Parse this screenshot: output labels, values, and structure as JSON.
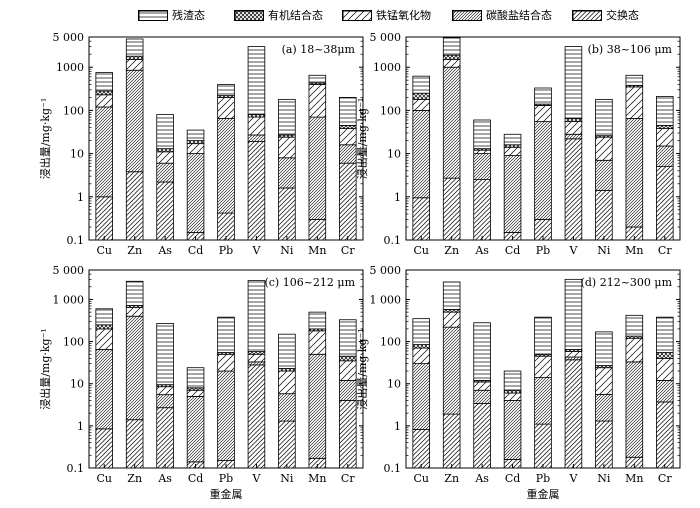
{
  "legend": [
    {
      "label": "残渣态",
      "pattern": "hlines"
    },
    {
      "label": "有机结合态",
      "pattern": "cross"
    },
    {
      "label": "铁锰氧化物",
      "pattern": "diag_sparse"
    },
    {
      "label": "碳酸盐结合态",
      "pattern": "diag_dense"
    },
    {
      "label": "交换态",
      "pattern": "diag_medium"
    }
  ],
  "chart_data": [
    {
      "type": "bar",
      "stacked": true,
      "yscale": "log",
      "title": "(a) 18~38μm",
      "categories": [
        "Cu",
        "Zn",
        "As",
        "Cd",
        "Pb",
        "V",
        "Ni",
        "Mn",
        "Cr"
      ],
      "ylabel": "浸出量/mg·kg⁻¹",
      "xlabel": "",
      "ylim": [
        0.1,
        5000
      ],
      "yticks": [
        "0.1",
        "1",
        "10",
        "100",
        "1000",
        "5 000"
      ],
      "cumulative": [
        {
          "name": "交换态",
          "values": [
            1.0,
            3.8,
            2.2,
            0.15,
            0.42,
            19,
            1.6,
            0.3,
            6
          ]
        },
        {
          "name": "碳酸盐结合态",
          "values": [
            120,
            850,
            6,
            10,
            65,
            27,
            8,
            70,
            16
          ]
        },
        {
          "name": "铁锰氧化物",
          "values": [
            230,
            1500,
            11,
            17,
            200,
            70,
            24,
            400,
            38
          ]
        },
        {
          "name": "有机结合态",
          "values": [
            280,
            1800,
            13,
            20,
            220,
            80,
            27,
            430,
            45
          ]
        },
        {
          "name": "残渣态",
          "values": [
            750,
            4500,
            80,
            35,
            400,
            3000,
            180,
            650,
            200
          ]
        }
      ]
    },
    {
      "type": "bar",
      "stacked": true,
      "yscale": "log",
      "title": "(b) 38~106 μm",
      "categories": [
        "Cu",
        "Zn",
        "As",
        "Cd",
        "Pb",
        "V",
        "Ni",
        "Mn",
        "Cr"
      ],
      "ylabel": "浸出量/mg·kg⁻¹",
      "xlabel": "",
      "ylim": [
        0.1,
        5000
      ],
      "yticks": [
        "0.1",
        "1",
        "10",
        "100",
        "1000",
        "5 000"
      ],
      "cumulative": [
        {
          "name": "交换态",
          "values": [
            0.95,
            2.7,
            2.5,
            0.15,
            0.3,
            22,
            1.4,
            0.2,
            5
          ]
        },
        {
          "name": "碳酸盐结合态",
          "values": [
            100,
            1000,
            10,
            9,
            55,
            28,
            7,
            65,
            15
          ]
        },
        {
          "name": "铁锰氧化物",
          "values": [
            180,
            1500,
            12,
            14,
            130,
            55,
            24,
            350,
            38
          ]
        },
        {
          "name": "有机结合态",
          "values": [
            250,
            1900,
            13,
            16,
            140,
            65,
            26,
            380,
            45
          ]
        },
        {
          "name": "残渣态",
          "values": [
            620,
            4800,
            60,
            28,
            330,
            3000,
            180,
            650,
            210
          ]
        }
      ]
    },
    {
      "type": "bar",
      "stacked": true,
      "yscale": "log",
      "title": "(c) 106~212 μm",
      "categories": [
        "Cu",
        "Zn",
        "As",
        "Cd",
        "Pb",
        "V",
        "Ni",
        "Mn",
        "Cr"
      ],
      "ylabel": "浸出量/mg·kg⁻¹",
      "xlabel": "重金属",
      "ylim": [
        0.1,
        5000
      ],
      "yticks": [
        "0.1",
        "1",
        "10",
        "100",
        "1 000",
        "5 000"
      ],
      "cumulative": [
        {
          "name": "交换态",
          "values": [
            0.85,
            1.4,
            2.7,
            0.14,
            0.15,
            28,
            1.3,
            0.17,
            4
          ]
        },
        {
          "name": "碳酸盐结合态",
          "values": [
            65,
            400,
            5.5,
            5,
            20,
            33,
            5.8,
            50,
            12
          ]
        },
        {
          "name": "铁锰氧化物",
          "values": [
            200,
            640,
            8.5,
            7,
            50,
            50,
            20,
            180,
            35
          ]
        },
        {
          "name": "有机结合态",
          "values": [
            250,
            720,
            9.5,
            8,
            55,
            58,
            23,
            200,
            45
          ]
        },
        {
          "name": "残渣态",
          "values": [
            600,
            2700,
            270,
            24,
            380,
            2800,
            150,
            500,
            330
          ]
        }
      ]
    },
    {
      "type": "bar",
      "stacked": true,
      "yscale": "log",
      "title": "(d) 212~300 μm",
      "categories": [
        "Cu",
        "Zn",
        "As",
        "Cd",
        "Pb",
        "V",
        "Ni",
        "Mn",
        "Cr"
      ],
      "ylabel": "浸出量/mg·kg⁻¹",
      "xlabel": "重金属",
      "ylim": [
        0.1,
        5000
      ],
      "yticks": [
        "0.1",
        "1",
        "10",
        "100",
        "1 000",
        "5 000"
      ],
      "cumulative": [
        {
          "name": "交换态",
          "values": [
            0.82,
            1.9,
            3.4,
            0.16,
            1.1,
            37,
            1.3,
            0.18,
            3.7
          ]
        },
        {
          "name": "碳酸盐结合态",
          "values": [
            30,
            220,
            7,
            4,
            14,
            43,
            5.6,
            33,
            12
          ]
        },
        {
          "name": "铁锰氧化物",
          "values": [
            70,
            500,
            11,
            6,
            45,
            58,
            24,
            120,
            40
          ]
        },
        {
          "name": "有机结合态",
          "values": [
            85,
            580,
            12,
            7,
            50,
            65,
            27,
            135,
            55
          ]
        },
        {
          "name": "残渣态",
          "values": [
            350,
            2600,
            280,
            20,
            380,
            3000,
            170,
            420,
            380
          ]
        }
      ]
    }
  ]
}
